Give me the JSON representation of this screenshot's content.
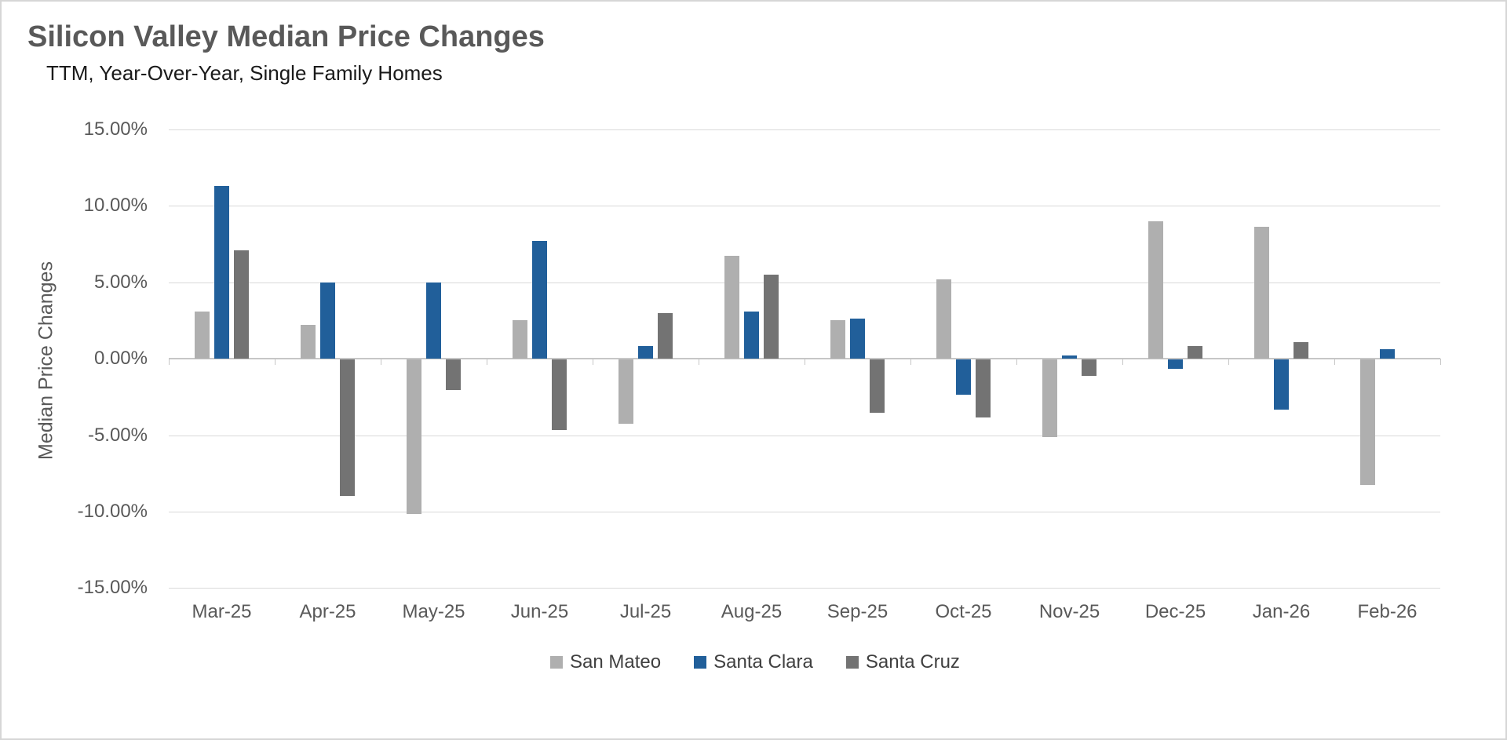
{
  "chart": {
    "title": "Silicon Valley Median Price Changes",
    "subtitle": "TTM, Year-Over-Year, Single Family Homes",
    "y_axis_title": "Median Price Changes"
  },
  "chart_data": {
    "type": "bar",
    "title": "Silicon Valley Median Price Changes",
    "subtitle": "TTM, Year-Over-Year, Single Family Homes",
    "xlabel": "",
    "ylabel": "Median Price Changes",
    "categories": [
      "Mar-25",
      "Apr-25",
      "May-25",
      "Jun-25",
      "Jul-25",
      "Aug-25",
      "Sep-25",
      "Oct-25",
      "Nov-25",
      "Dec-25",
      "Jan-26",
      "Feb-26"
    ],
    "series": [
      {
        "name": "San Mateo",
        "color": "#afafaf",
        "values": [
          3.1,
          2.2,
          -10.1,
          2.5,
          -4.2,
          6.7,
          2.5,
          5.2,
          -5.1,
          9.0,
          8.6,
          -8.2
        ]
      },
      {
        "name": "Santa Clara",
        "color": "#215f9a",
        "values": [
          11.3,
          5.0,
          5.0,
          7.7,
          0.8,
          3.1,
          2.6,
          -2.3,
          0.2,
          -0.6,
          -3.3,
          0.6
        ]
      },
      {
        "name": "Santa Cruz",
        "color": "#737373",
        "values": [
          7.1,
          -8.9,
          -2.0,
          -4.6,
          3.0,
          5.5,
          -3.5,
          -3.8,
          -1.1,
          0.8,
          1.1,
          0.0
        ]
      }
    ],
    "ylim": [
      -15,
      15
    ],
    "ytick_step": 5,
    "ytick_format": "0.00%",
    "grid": "horizontal",
    "legend_position": "bottom",
    "gridline_color": "#d9d9d9",
    "axis_line_color": "#c6c6c6",
    "title_color": "#595959",
    "axis_label_color": "#595959"
  }
}
